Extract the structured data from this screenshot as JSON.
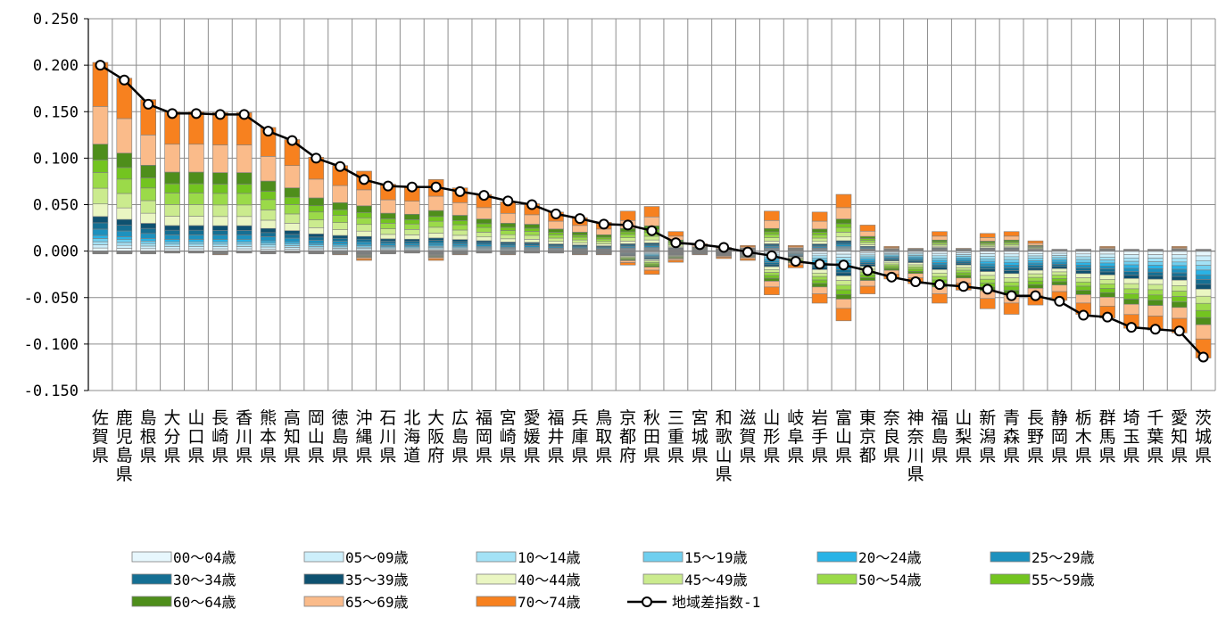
{
  "chart_data": {
    "type": "bar",
    "stacked": true,
    "ylim": [
      -0.15,
      0.25
    ],
    "yticks": [
      "0.250",
      "0.200",
      "0.150",
      "0.100",
      "0.050",
      "0.000",
      "-0.050",
      "-0.100",
      "-0.150"
    ],
    "grid": true,
    "legend_position": "bottom",
    "categories": [
      "佐賀県",
      "鹿児島県",
      "島根県",
      "大分県",
      "山口県",
      "長崎県",
      "香川県",
      "熊本県",
      "高知県",
      "岡山県",
      "徳島県",
      "沖縄県",
      "石川県",
      "北海道",
      "大阪府",
      "広島県",
      "福岡県",
      "宮崎県",
      "愛媛県",
      "福井県",
      "兵庫県",
      "鳥取県",
      "京都府",
      "秋田県",
      "三重県",
      "宮城県",
      "和歌山県",
      "滋賀県",
      "山形県",
      "岐阜県",
      "岩手県",
      "富山県",
      "東京都",
      "奈良県",
      "神奈川県",
      "福島県",
      "山梨県",
      "新潟県",
      "青森県",
      "長野県",
      "静岡県",
      "栃木県",
      "群馬県",
      "埼玉県",
      "千葉県",
      "愛知県",
      "茨城県"
    ],
    "series": [
      {
        "name": "00～04歳",
        "color": "#E7F7FD"
      },
      {
        "name": "05～09歳",
        "color": "#CDEFFB"
      },
      {
        "name": "10～14歳",
        "color": "#A3E2F6"
      },
      {
        "name": "15～19歳",
        "color": "#6FCFEF"
      },
      {
        "name": "20～24歳",
        "color": "#29B3E6"
      },
      {
        "name": "25～29歳",
        "color": "#1D91BE"
      },
      {
        "name": "30～34歳",
        "color": "#156F93"
      },
      {
        "name": "35～39歳",
        "color": "#0E5170"
      },
      {
        "name": "40～44歳",
        "color": "#EAF6C2"
      },
      {
        "name": "45～49歳",
        "color": "#CBEB8E"
      },
      {
        "name": "50～54歳",
        "color": "#9BDA49"
      },
      {
        "name": "55～59歳",
        "color": "#73C420"
      },
      {
        "name": "60～64歳",
        "color": "#4E8E1B"
      },
      {
        "name": "65～69歳",
        "color": "#FABB8A"
      },
      {
        "name": "70～74歳",
        "color": "#F7811F"
      }
    ],
    "stack_positive_tops": [
      0.203,
      0.186,
      0.163,
      0.15,
      0.15,
      0.149,
      0.149,
      0.133,
      0.12,
      0.101,
      0.092,
      0.086,
      0.072,
      0.07,
      0.077,
      0.068,
      0.061,
      0.053,
      0.051,
      0.042,
      0.036,
      0.031,
      0.043,
      0.048,
      0.021,
      0.008,
      0.004,
      0.006,
      0.043,
      0.006,
      0.042,
      0.061,
      0.028,
      0.005,
      0.003,
      0.021,
      0.003,
      0.019,
      0.021,
      0.011,
      0.002,
      0.002,
      0.005,
      0.002,
      0.002,
      0.005,
      0.002
    ],
    "stack_negative_bottoms": [
      -0.003,
      -0.003,
      -0.003,
      -0.002,
      -0.002,
      -0.004,
      -0.002,
      -0.003,
      -0.002,
      -0.003,
      -0.004,
      -0.01,
      -0.003,
      -0.002,
      -0.01,
      -0.004,
      -0.002,
      -0.004,
      -0.002,
      -0.002,
      -0.004,
      -0.004,
      -0.015,
      -0.025,
      -0.012,
      -0.004,
      -0.008,
      -0.01,
      -0.047,
      -0.018,
      -0.056,
      -0.075,
      -0.046,
      -0.03,
      -0.035,
      -0.056,
      -0.042,
      -0.062,
      -0.068,
      -0.058,
      -0.053,
      -0.068,
      -0.072,
      -0.083,
      -0.085,
      -0.088,
      -0.115
    ],
    "line": {
      "name": "地域差指数-1",
      "color": "#000000",
      "values": [
        0.2,
        0.184,
        0.158,
        0.148,
        0.148,
        0.147,
        0.147,
        0.129,
        0.119,
        0.1,
        0.091,
        0.077,
        0.07,
        0.069,
        0.069,
        0.064,
        0.06,
        0.054,
        0.05,
        0.04,
        0.035,
        0.029,
        0.028,
        0.022,
        0.009,
        0.007,
        0.004,
        -0.001,
        -0.005,
        -0.011,
        -0.014,
        -0.015,
        -0.021,
        -0.028,
        -0.033,
        -0.036,
        -0.038,
        -0.041,
        -0.048,
        -0.048,
        -0.054,
        -0.069,
        -0.071,
        -0.082,
        -0.084,
        -0.086,
        -0.114
      ]
    }
  }
}
